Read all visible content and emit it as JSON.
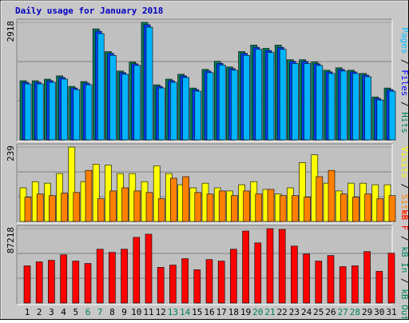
{
  "title": "Daily usage for January 2018",
  "legend_separator": " / ",
  "chart_data": [
    {
      "type": "bar",
      "categories": [
        "1",
        "2",
        "3",
        "4",
        "5",
        "6",
        "7",
        "8",
        "9",
        "10",
        "11",
        "12",
        "13",
        "14",
        "15",
        "16",
        "17",
        "18",
        "19",
        "20",
        "21",
        "22",
        "23",
        "24",
        "25",
        "26",
        "27",
        "28",
        "29",
        "30",
        "31"
      ],
      "category_colors": [
        "#000000",
        "#000000",
        "#000000",
        "#000000",
        "#000000",
        "#00805c",
        "#00805c",
        "#000000",
        "#000000",
        "#000000",
        "#000000",
        "#000000",
        "#00805c",
        "#00805c",
        "#000000",
        "#000000",
        "#000000",
        "#000000",
        "#000000",
        "#00805c",
        "#00805c",
        "#000000",
        "#000000",
        "#000000",
        "#000000",
        "#000000",
        "#00805c",
        "#00805c",
        "#000000",
        "#000000",
        "#000000"
      ],
      "ylim": [
        0,
        2918
      ],
      "yticks": [
        2918
      ],
      "axis_label_right": [
        {
          "text": "Pages",
          "color": "#00c0ff"
        },
        {
          "text": "Files",
          "color": "#0000ff"
        },
        {
          "text": "Hits",
          "color": "#00805c"
        }
      ],
      "series": [
        {
          "name": "Hits",
          "color": "#00805c",
          "values": [
            1469,
            1469,
            1509,
            1590,
            1328,
            1449,
            2757,
            2193,
            1710,
            1932,
            2918,
            1368,
            1509,
            1630,
            1288,
            1751,
            1952,
            1811,
            2193,
            2354,
            2274,
            2354,
            1992,
            1992,
            1932,
            1731,
            1791,
            1731,
            1650,
            1066,
            1288
          ]
        },
        {
          "name": "Files",
          "color": "#0040ff",
          "values": [
            1430,
            1430,
            1470,
            1550,
            1290,
            1410,
            2700,
            2150,
            1670,
            1890,
            2860,
            1330,
            1470,
            1590,
            1250,
            1710,
            1900,
            1770,
            2150,
            2300,
            2220,
            2300,
            1950,
            1950,
            1890,
            1690,
            1750,
            1690,
            1610,
            1030,
            1250
          ]
        },
        {
          "name": "Pages",
          "color": "#00b4ff",
          "values": [
            1390,
            1390,
            1430,
            1510,
            1250,
            1370,
            2640,
            2100,
            1630,
            1850,
            2800,
            1290,
            1430,
            1550,
            1210,
            1670,
            1860,
            1730,
            2100,
            2250,
            2170,
            2250,
            1900,
            1900,
            1850,
            1650,
            1710,
            1650,
            1570,
            990,
            1210
          ]
        }
      ]
    },
    {
      "type": "bar",
      "ylim": [
        0,
        239
      ],
      "yticks": [
        239
      ],
      "axis_label_right": [
        {
          "text": "Visits",
          "color": "#ffff00"
        },
        {
          "text": "Sites",
          "color": "#ff8000"
        }
      ],
      "series": [
        {
          "name": "Visits",
          "color": "#ffff00",
          "values": [
            108,
            128,
            123,
            154,
            239,
            128,
            184,
            181,
            154,
            154,
            128,
            179,
            154,
            118,
            108,
            123,
            108,
            98,
            118,
            128,
            103,
            88,
            108,
            189,
            214,
            123,
            98,
            123,
            123,
            118,
            118
          ]
        },
        {
          "name": "Sites",
          "color": "#ff8000",
          "values": [
            78,
            88,
            83,
            91,
            93,
            164,
            73,
            98,
            108,
            98,
            93,
            73,
            139,
            144,
            93,
            88,
            98,
            83,
            98,
            88,
            103,
            83,
            83,
            78,
            144,
            164,
            88,
            78,
            88,
            73,
            83
          ]
        }
      ]
    },
    {
      "type": "bar",
      "ylim": [
        0,
        87218
      ],
      "yticks": [
        87218
      ],
      "axis_label_right": [
        {
          "text": "kB F",
          "color": "#ff0000"
        },
        {
          "text": "kB In",
          "color": "#00805c"
        },
        {
          "text": "kB Out",
          "color": "#00805c"
        }
      ],
      "series": [
        {
          "name": "kB F",
          "color": "#ff0000",
          "values": [
            43600,
            48250,
            50100,
            56600,
            49200,
            46400,
            63100,
            59400,
            63100,
            77000,
            80700,
            41800,
            44500,
            52000,
            39000,
            51000,
            49200,
            63100,
            84400,
            70500,
            87218,
            86300,
            66800,
            57500,
            49200,
            55700,
            42700,
            43600,
            60300,
            37100,
            58500
          ]
        }
      ]
    }
  ]
}
